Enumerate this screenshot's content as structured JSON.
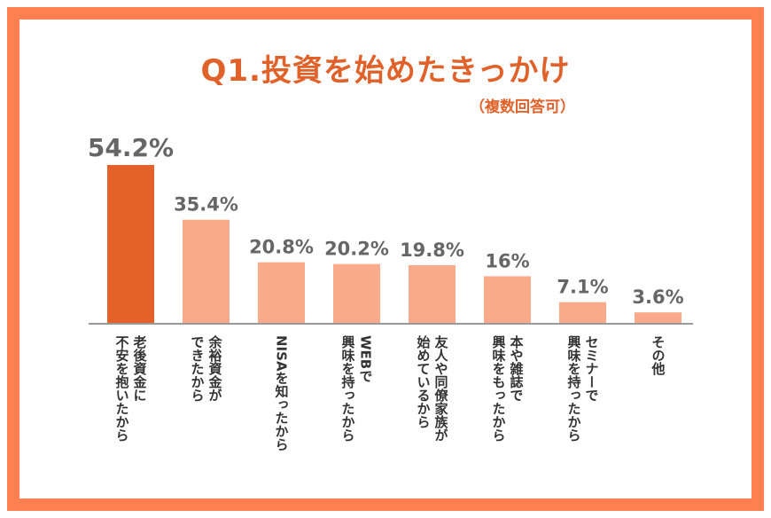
{
  "chart_data": {
    "type": "bar",
    "title": "Q1.投資を始めたきっかけ",
    "subtitle": "（複数回答可）",
    "categories": [
      "老後資金に\n不安を抱いたから",
      "余裕資金が\nできたから",
      "NISAを知ったから",
      "WEBで\n興味を持ったから",
      "友人や同僚家族が\n始めているから",
      "本や雑誌で\n興味をもったから",
      "セミナーで\n興味を持ったから",
      "その他"
    ],
    "values": [
      54.2,
      35.4,
      20.8,
      20.2,
      19.8,
      16,
      7.1,
      3.6
    ],
    "value_labels": [
      "54.2%",
      "35.4%",
      "20.8%",
      "20.2%",
      "19.8%",
      "16%",
      "7.1%",
      "3.6%"
    ],
    "unit": "%",
    "ylim": [
      0,
      60
    ],
    "grid": false,
    "colors": {
      "highlight": "#e4622a",
      "bar": "#f8aa8a",
      "frame": "#ff7f50",
      "title": "#e0622a",
      "value_text": "#666666"
    }
  }
}
